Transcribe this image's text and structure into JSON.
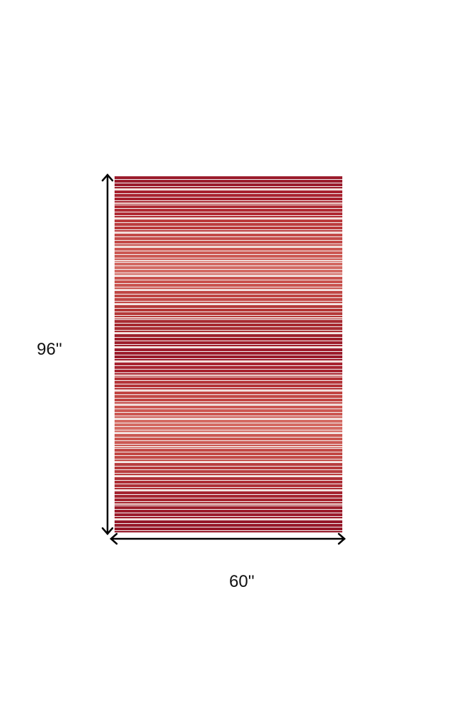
{
  "product": {
    "height_label": "96''",
    "width_label": "60''",
    "band_colors": [
      "#9b1b2c",
      "#a8222f",
      "#b02a34",
      "#bb3a3d",
      "#c44a48",
      "#cc5853",
      "#d36a63",
      "#c9524e",
      "#c04644",
      "#b53838",
      "#a82a31",
      "#9e1f2b",
      "#9b1b2b",
      "#a82531",
      "#b53438",
      "#c24643",
      "#cc5752",
      "#d46a62",
      "#cb5852",
      "#c24845",
      "#b83b3d",
      "#ae2e35",
      "#a52430",
      "#9c1c2b",
      "#961829"
    ],
    "stripe_color": "#f1d6d2",
    "arrow_color": "#000000"
  }
}
